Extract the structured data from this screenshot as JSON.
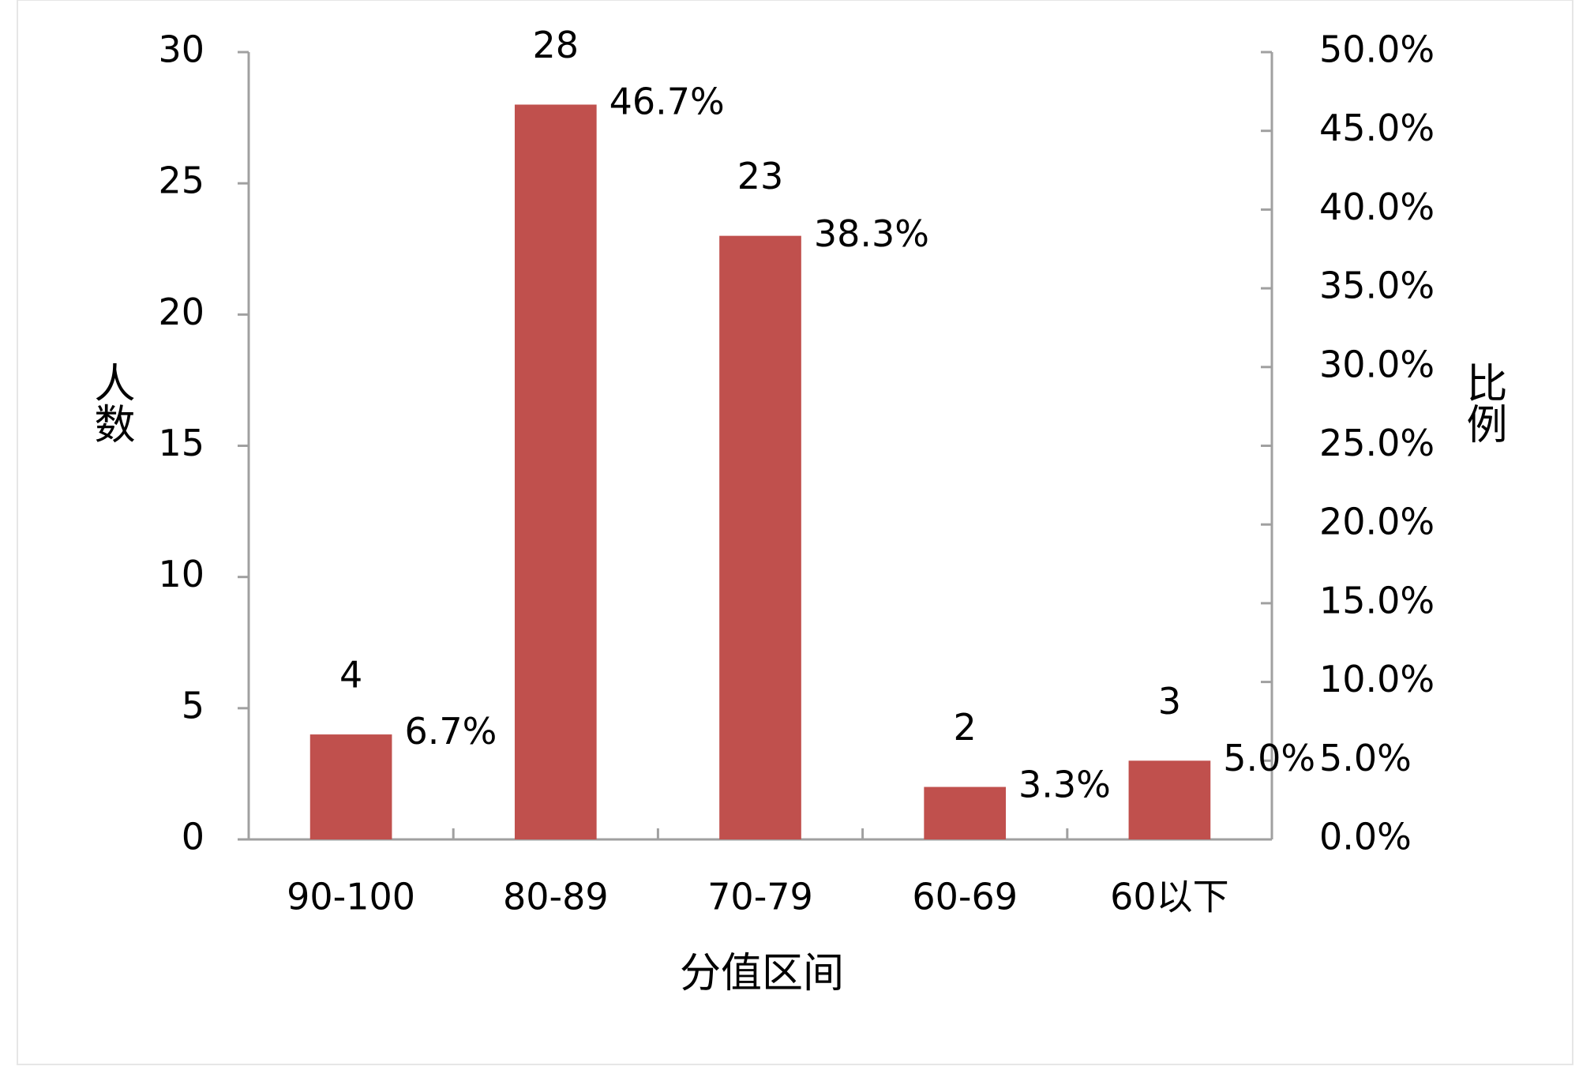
{
  "chart_data": {
    "type": "bar",
    "x_label": "分值区间",
    "y_label": "人数",
    "y2_label": "比例",
    "categories": [
      "90-100",
      "80-89",
      "70-79",
      "60-69",
      "60以下"
    ],
    "series": [
      {
        "color": "#c0504d",
        "values": [
          4,
          28,
          23,
          2,
          3
        ]
      },
      {
        "axis": "y2",
        "values": [
          6.7,
          46.7,
          38.3,
          3.3,
          5.0
        ],
        "value_labels": [
          "6.7%",
          "46.7%",
          "38.3%",
          "3.3%",
          "5.0%"
        ]
      }
    ],
    "ylim": [
      0,
      30
    ],
    "yticks": [
      0,
      5,
      10,
      15,
      20,
      25,
      30
    ],
    "y2lim": [
      0,
      50
    ],
    "y2ticks": [
      {
        "value": 0,
        "label": "0.0%"
      },
      {
        "value": 5,
        "label": "5.0%"
      },
      {
        "value": 10,
        "label": "10.0%"
      },
      {
        "value": 15,
        "label": "15.0%"
      },
      {
        "value": 20,
        "label": "20.0%"
      },
      {
        "value": 25,
        "label": "25.0%"
      },
      {
        "value": 30,
        "label": "30.0%"
      },
      {
        "value": 35,
        "label": "35.0%"
      },
      {
        "value": 40,
        "label": "40.0%"
      },
      {
        "value": 45,
        "label": "45.0%"
      },
      {
        "value": 50,
        "label": "50.0%"
      }
    ]
  }
}
